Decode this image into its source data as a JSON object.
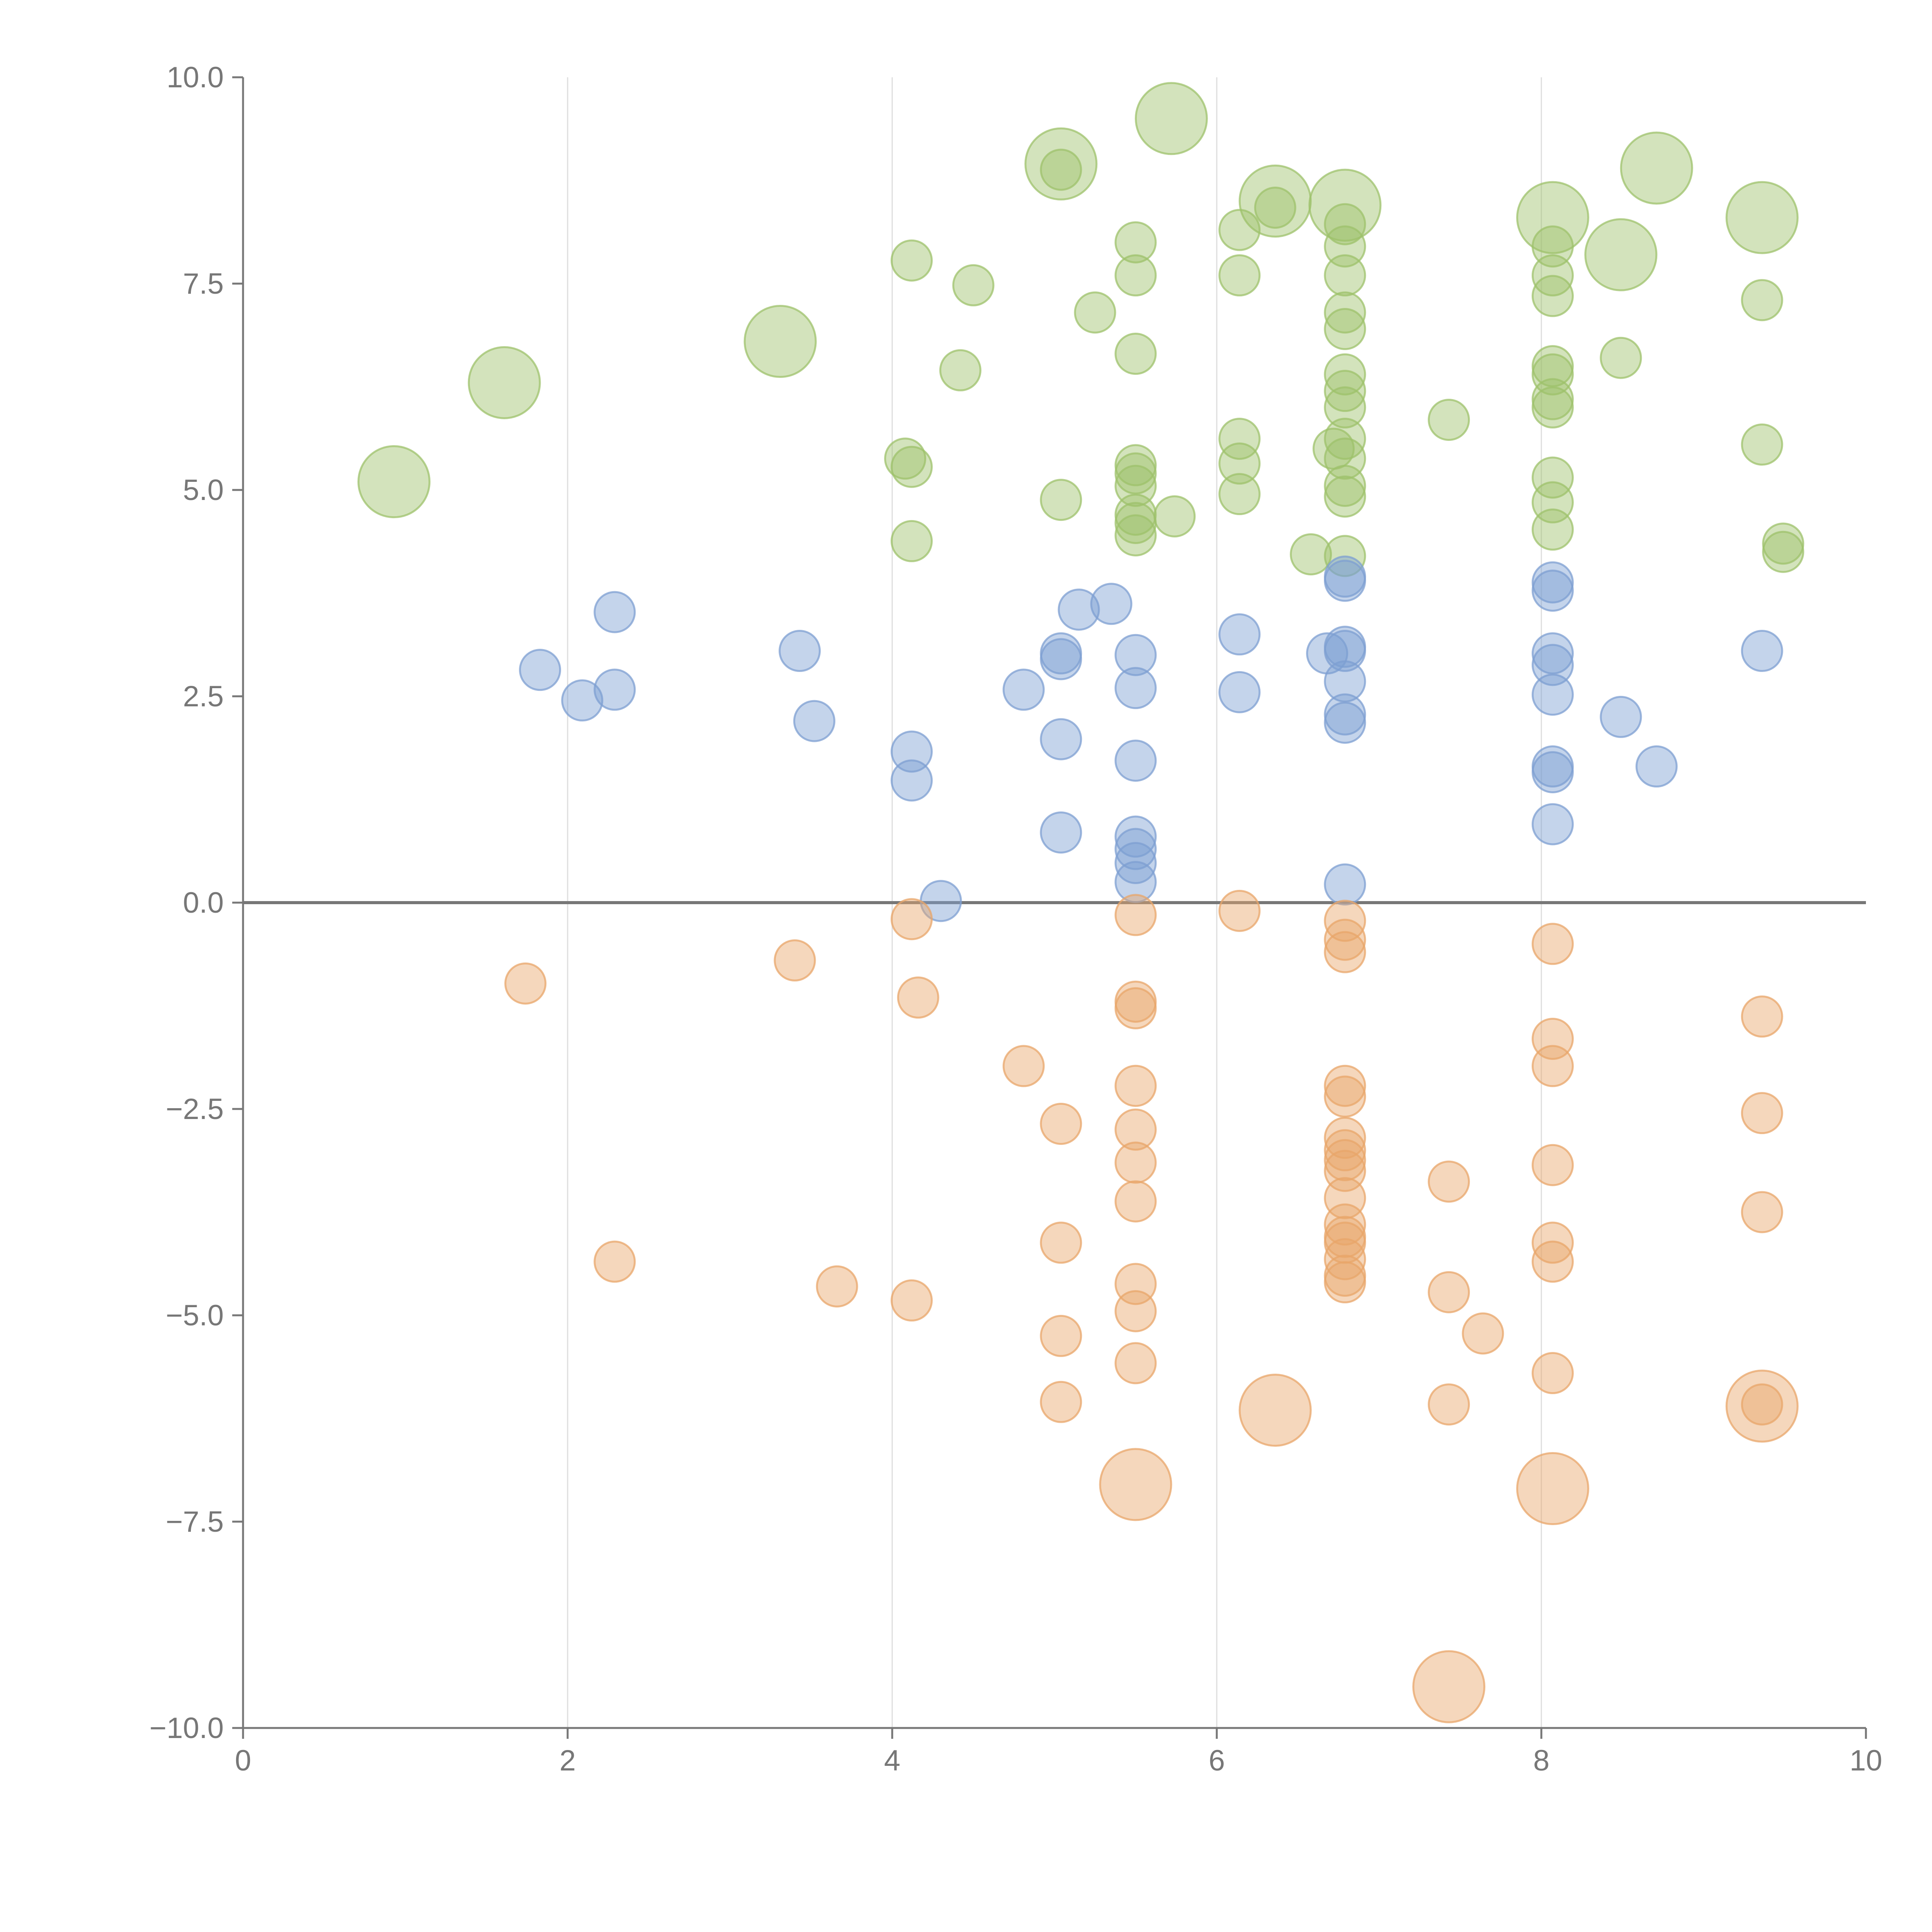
{
  "chart_data": {
    "type": "scatter",
    "title": "",
    "xlabel": "",
    "ylabel": "",
    "xlim": [
      0,
      10
    ],
    "ylim": [
      -10,
      10
    ],
    "x_ticks": [
      "0",
      "2",
      "4",
      "6",
      "8",
      "10"
    ],
    "y_ticks": [
      "10.0",
      "7.5",
      "5.0",
      "2.5",
      "0.0",
      "−2.5",
      "−5.0",
      "−7.5",
      "−10.0"
    ],
    "x_tick_values": [
      0,
      2,
      4,
      6,
      8,
      10
    ],
    "y_tick_values": [
      10,
      7.5,
      5,
      2.5,
      0,
      -2.5,
      -5,
      -7.5,
      -10
    ],
    "vertical_grid": [
      2,
      4,
      6,
      8
    ],
    "zero_line": 0,
    "series": [
      {
        "name": "green",
        "color": "#9dc16b",
        "points": [
          [
            0.93,
            5.1,
            2
          ],
          [
            1.61,
            6.3,
            2
          ],
          [
            3.31,
            6.8,
            2
          ],
          [
            5.04,
            8.95,
            2
          ],
          [
            5.72,
            9.5,
            2
          ],
          [
            6.36,
            8.5,
            2
          ],
          [
            6.79,
            8.45,
            2
          ],
          [
            8.07,
            8.3,
            2
          ],
          [
            8.49,
            7.85,
            2
          ],
          [
            8.71,
            8.9,
            2
          ],
          [
            9.36,
            8.3,
            2
          ],
          [
            4.12,
            7.78,
            1
          ],
          [
            4.5,
            7.48,
            1
          ],
          [
            4.42,
            6.45,
            1
          ],
          [
            4.08,
            5.38,
            1
          ],
          [
            4.12,
            5.28,
            1
          ],
          [
            4.12,
            4.38,
            1
          ],
          [
            5.04,
            8.88,
            1
          ],
          [
            5.04,
            4.88,
            1
          ],
          [
            5.25,
            7.15,
            1
          ],
          [
            5.5,
            8.0,
            1
          ],
          [
            5.5,
            7.6,
            1
          ],
          [
            5.5,
            6.65,
            1
          ],
          [
            5.5,
            5.3,
            1
          ],
          [
            5.5,
            5.2,
            1
          ],
          [
            5.5,
            5.05,
            1
          ],
          [
            5.5,
            4.7,
            1
          ],
          [
            5.5,
            4.6,
            1
          ],
          [
            5.5,
            4.45,
            1
          ],
          [
            5.74,
            4.68,
            1
          ],
          [
            6.14,
            8.15,
            1
          ],
          [
            6.14,
            7.6,
            1
          ],
          [
            6.14,
            5.62,
            1
          ],
          [
            6.14,
            5.32,
            1
          ],
          [
            6.14,
            4.95,
            1
          ],
          [
            6.36,
            8.42,
            1
          ],
          [
            6.58,
            4.22,
            1
          ],
          [
            6.72,
            5.5,
            1
          ],
          [
            6.79,
            8.22,
            1
          ],
          [
            6.79,
            7.95,
            1
          ],
          [
            6.79,
            7.6,
            1
          ],
          [
            6.79,
            7.15,
            1
          ],
          [
            6.79,
            6.95,
            1
          ],
          [
            6.79,
            6.4,
            1
          ],
          [
            6.79,
            6.2,
            1
          ],
          [
            6.79,
            6.0,
            1
          ],
          [
            6.79,
            5.62,
            1
          ],
          [
            6.79,
            5.38,
            1
          ],
          [
            6.79,
            5.05,
            1
          ],
          [
            6.79,
            4.92,
            1
          ],
          [
            6.79,
            4.2,
            1
          ],
          [
            7.43,
            5.85,
            1
          ],
          [
            8.07,
            7.95,
            1
          ],
          [
            8.07,
            7.6,
            1
          ],
          [
            8.07,
            7.35,
            1
          ],
          [
            8.07,
            6.5,
            1
          ],
          [
            8.07,
            6.4,
            1
          ],
          [
            8.07,
            6.1,
            1
          ],
          [
            8.07,
            6.0,
            1
          ],
          [
            8.07,
            5.15,
            1
          ],
          [
            8.07,
            4.85,
            1
          ],
          [
            8.07,
            4.52,
            1
          ],
          [
            8.49,
            6.6,
            1
          ],
          [
            9.36,
            7.3,
            1
          ],
          [
            9.36,
            5.55,
            1
          ],
          [
            9.49,
            4.35,
            1
          ],
          [
            9.49,
            4.25,
            1
          ]
        ]
      },
      {
        "name": "blue",
        "color": "#7d9fd2",
        "points": [
          [
            1.83,
            2.82,
            1
          ],
          [
            2.09,
            2.45,
            1
          ],
          [
            2.29,
            3.52,
            1
          ],
          [
            2.29,
            2.58,
            1
          ],
          [
            3.43,
            3.05,
            1
          ],
          [
            3.52,
            2.2,
            1
          ],
          [
            4.12,
            1.83,
            1
          ],
          [
            4.12,
            1.48,
            1
          ],
          [
            4.3,
            0.02,
            1
          ],
          [
            4.81,
            2.58,
            1
          ],
          [
            5.04,
            3.02,
            1
          ],
          [
            5.04,
            2.95,
            1
          ],
          [
            5.04,
            1.98,
            1
          ],
          [
            5.04,
            0.85,
            1
          ],
          [
            5.15,
            3.55,
            1
          ],
          [
            5.35,
            3.62,
            1
          ],
          [
            5.5,
            3.0,
            1
          ],
          [
            5.5,
            2.6,
            1
          ],
          [
            5.5,
            1.72,
            1
          ],
          [
            5.5,
            0.8,
            1
          ],
          [
            5.5,
            0.65,
            1
          ],
          [
            5.5,
            0.48,
            1
          ],
          [
            5.5,
            0.25,
            1
          ],
          [
            6.14,
            3.25,
            1
          ],
          [
            6.14,
            2.55,
            1
          ],
          [
            6.68,
            3.02,
            1
          ],
          [
            6.79,
            3.95,
            1
          ],
          [
            6.79,
            3.9,
            1
          ],
          [
            6.79,
            3.1,
            1
          ],
          [
            6.79,
            3.05,
            1
          ],
          [
            6.79,
            2.68,
            1
          ],
          [
            6.79,
            2.28,
            1
          ],
          [
            6.79,
            2.18,
            1
          ],
          [
            6.79,
            0.22,
            1
          ],
          [
            8.07,
            3.88,
            1
          ],
          [
            8.07,
            3.78,
            1
          ],
          [
            8.07,
            3.02,
            1
          ],
          [
            8.07,
            2.88,
            1
          ],
          [
            8.07,
            2.52,
            1
          ],
          [
            8.07,
            1.65,
            1
          ],
          [
            8.07,
            1.58,
            1
          ],
          [
            8.07,
            0.95,
            1
          ],
          [
            8.49,
            2.25,
            1
          ],
          [
            8.71,
            1.65,
            1
          ],
          [
            9.36,
            3.05,
            1
          ]
        ]
      },
      {
        "name": "orange",
        "color": "#e8a66a",
        "points": [
          [
            5.5,
            -7.05,
            2
          ],
          [
            6.36,
            -6.15,
            2
          ],
          [
            7.43,
            -9.5,
            2
          ],
          [
            8.07,
            -7.1,
            2
          ],
          [
            9.36,
            -6.1,
            2
          ],
          [
            1.74,
            -0.98,
            1
          ],
          [
            2.29,
            -4.35,
            1
          ],
          [
            3.4,
            -0.7,
            1
          ],
          [
            3.66,
            -4.65,
            1
          ],
          [
            4.12,
            -0.2,
            1
          ],
          [
            4.16,
            -1.15,
            1
          ],
          [
            4.12,
            -4.82,
            1
          ],
          [
            4.81,
            -1.98,
            1
          ],
          [
            5.04,
            -2.68,
            1
          ],
          [
            5.04,
            -4.12,
            1
          ],
          [
            5.04,
            -5.25,
            1
          ],
          [
            5.04,
            -6.05,
            1
          ],
          [
            5.5,
            -0.15,
            1
          ],
          [
            5.5,
            -1.2,
            1
          ],
          [
            5.5,
            -1.28,
            1
          ],
          [
            5.5,
            -2.22,
            1
          ],
          [
            5.5,
            -2.75,
            1
          ],
          [
            5.5,
            -3.15,
            1
          ],
          [
            5.5,
            -3.62,
            1
          ],
          [
            5.5,
            -4.62,
            1
          ],
          [
            5.5,
            -4.95,
            1
          ],
          [
            5.5,
            -5.58,
            1
          ],
          [
            6.14,
            -0.1,
            1
          ],
          [
            6.79,
            -0.22,
            1
          ],
          [
            6.79,
            -0.45,
            1
          ],
          [
            6.79,
            -0.6,
            1
          ],
          [
            6.79,
            -2.22,
            1
          ],
          [
            6.79,
            -2.35,
            1
          ],
          [
            6.79,
            -2.85,
            1
          ],
          [
            6.79,
            -3.0,
            1
          ],
          [
            6.79,
            -3.12,
            1
          ],
          [
            6.79,
            -3.25,
            1
          ],
          [
            6.79,
            -3.58,
            1
          ],
          [
            6.79,
            -3.9,
            1
          ],
          [
            6.79,
            -4.05,
            1
          ],
          [
            6.79,
            -4.12,
            1
          ],
          [
            6.79,
            -4.32,
            1
          ],
          [
            6.79,
            -4.52,
            1
          ],
          [
            6.79,
            -4.6,
            1
          ],
          [
            7.43,
            -3.38,
            1
          ],
          [
            7.43,
            -4.72,
            1
          ],
          [
            7.43,
            -6.08,
            1
          ],
          [
            7.64,
            -5.22,
            1
          ],
          [
            8.07,
            -0.5,
            1
          ],
          [
            8.07,
            -1.65,
            1
          ],
          [
            8.07,
            -1.98,
            1
          ],
          [
            8.07,
            -3.18,
            1
          ],
          [
            8.07,
            -4.12,
            1
          ],
          [
            8.07,
            -4.35,
            1
          ],
          [
            8.07,
            -5.7,
            1
          ],
          [
            9.36,
            -1.38,
            1
          ],
          [
            9.36,
            -2.55,
            1
          ],
          [
            9.36,
            -3.75,
            1
          ],
          [
            9.36,
            -6.08,
            1
          ]
        ]
      }
    ]
  }
}
